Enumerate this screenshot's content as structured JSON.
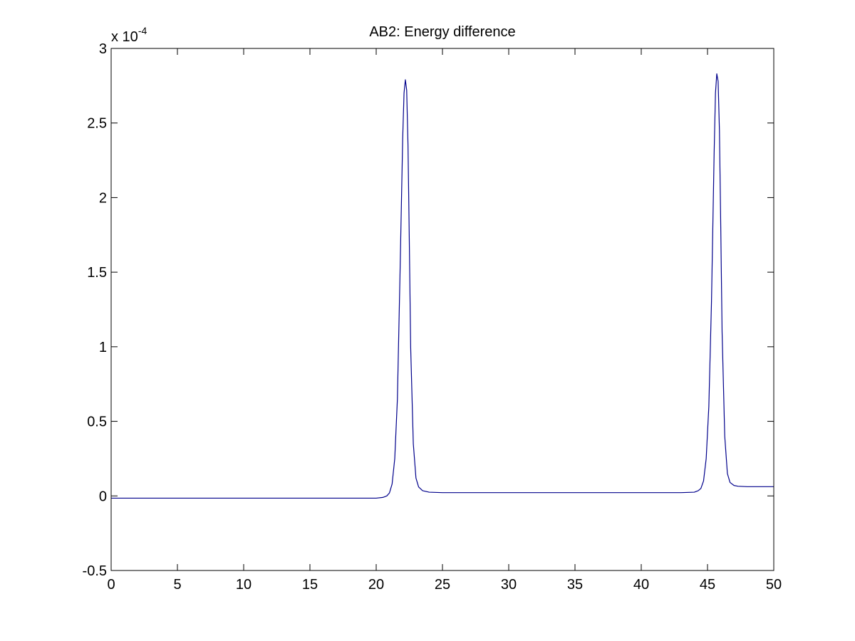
{
  "chart_data": {
    "type": "line",
    "title": "AB2: Energy difference",
    "xlabel": "",
    "ylabel": "",
    "y_exponent_label": "x 10",
    "y_exponent_power": "-4",
    "xlim": [
      0,
      50
    ],
    "ylim": [
      -0.5,
      3
    ],
    "y_scale_factor": 0.0001,
    "x_ticks": [
      0,
      5,
      10,
      15,
      20,
      25,
      30,
      35,
      40,
      45,
      50
    ],
    "x_tick_labels": [
      "0",
      "5",
      "10",
      "15",
      "20",
      "25",
      "30",
      "35",
      "40",
      "45",
      "50"
    ],
    "y_ticks": [
      -0.5,
      0,
      0.5,
      1,
      1.5,
      2,
      2.5,
      3
    ],
    "y_tick_labels": [
      "-0.5",
      "0",
      "0.5",
      "1",
      "1.5",
      "2",
      "2.5",
      "3"
    ],
    "grid": false,
    "line_color": "#00008b",
    "series": [
      {
        "x": [
          0,
          5,
          10,
          15,
          18,
          20,
          20.5,
          20.8,
          21.0,
          21.2,
          21.4,
          21.6,
          21.8,
          22.0,
          22.1,
          22.2,
          22.3,
          22.4,
          22.5,
          22.6,
          22.8,
          23.0,
          23.2,
          23.5,
          24.0,
          25,
          30,
          35,
          40,
          43,
          44.0,
          44.3,
          44.5,
          44.7,
          44.9,
          45.1,
          45.3,
          45.5,
          45.6,
          45.7,
          45.8,
          45.9,
          46.0,
          46.1,
          46.3,
          46.5,
          46.7,
          47.0,
          47.3,
          48,
          50
        ],
        "y": [
          -0.015,
          -0.015,
          -0.015,
          -0.015,
          -0.015,
          -0.015,
          -0.01,
          0.0,
          0.02,
          0.08,
          0.25,
          0.65,
          1.5,
          2.4,
          2.7,
          2.79,
          2.72,
          2.35,
          1.7,
          1.0,
          0.35,
          0.12,
          0.06,
          0.035,
          0.025,
          0.022,
          0.022,
          0.022,
          0.022,
          0.022,
          0.025,
          0.035,
          0.05,
          0.1,
          0.25,
          0.6,
          1.3,
          2.3,
          2.7,
          2.83,
          2.78,
          2.45,
          1.8,
          1.1,
          0.4,
          0.15,
          0.09,
          0.07,
          0.065,
          0.062,
          0.062
        ]
      }
    ]
  }
}
